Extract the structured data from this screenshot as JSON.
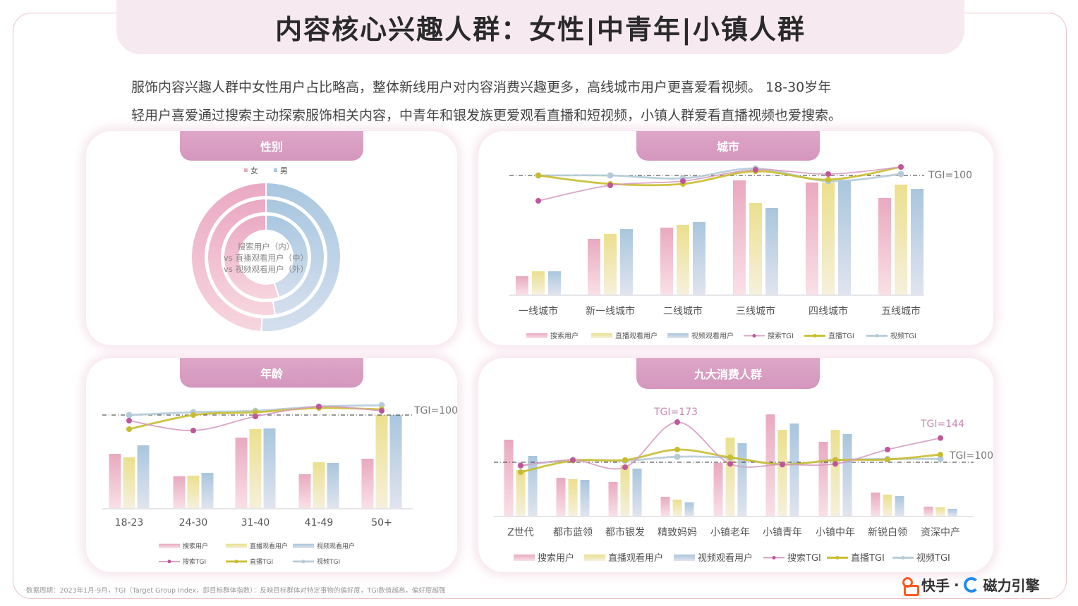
{
  "title": "内容核心兴趣人群：女性|中青年|小镇人群",
  "description": [
    "服饰内容兴趣人群中女性用户占比略高，整体新线用户对内容消费兴趣更多，高线城市用户更喜爱看视频。 18-30岁年",
    "轻用户喜爱通过搜索主动探索服饰相关内容，中青年和银发族更爱观看直播和短视频，小镇人群爱看直播视频也爱搜索。"
  ],
  "footer_note": "数据周期：2023年1月-9月，TGI（Target Group Index，即目标群体指数）：反映目标群体对特定事物的偏好度，TGI数值越高，偏好度越强",
  "logo": {
    "kuaishou": "快手",
    "separator": "·",
    "cili": "磁力引擎"
  },
  "colors": {
    "female": "#eaa9c3",
    "male": "#a9c7e0",
    "search": "#e9a9c0",
    "live": "#ebe08e",
    "video": "#a9c6dd",
    "search_tgi": "#c0569a",
    "live_tgi": "#c8bd2c",
    "video_tgi": "#a8c4d4",
    "tab": "#d99cc2"
  },
  "chart_data": [
    {
      "type": "pie",
      "title": "性别",
      "legend": [
        "女",
        "男"
      ],
      "center_label": [
        "搜索用户（内）",
        "vs 直播观看用户（中）",
        "vs 视频观看用户（外）"
      ],
      "rings": [
        {
          "name": "搜索用户",
          "position": "内",
          "values": [
            55,
            45
          ]
        },
        {
          "name": "直播观看用户",
          "position": "中",
          "values": [
            52.5,
            47.5
          ]
        },
        {
          "name": "视频观看用户",
          "position": "外",
          "values": [
            49,
            51
          ]
        }
      ]
    },
    {
      "type": "bar",
      "title": "城市",
      "categories": [
        "一线城市",
        "新一线城市",
        "二线城市",
        "三线城市",
        "四线城市",
        "五线城市"
      ],
      "series": [
        {
          "name": "搜索用户",
          "kind": "bar",
          "values": [
            26,
            79,
            95,
            162,
            159,
            137
          ]
        },
        {
          "name": "直播观看用户",
          "kind": "bar",
          "values": [
            33,
            86,
            99,
            130,
            159,
            156
          ]
        },
        {
          "name": "视频观看用户",
          "kind": "bar",
          "values": [
            33,
            93,
            103,
            123,
            163,
            150
          ]
        },
        {
          "name": "搜索TGI",
          "kind": "line",
          "values": [
            82,
            93,
            96,
            104,
            101,
            106
          ]
        },
        {
          "name": "直播TGI",
          "kind": "line",
          "values": [
            100,
            94,
            94,
            103,
            97,
            106
          ]
        },
        {
          "name": "视频TGI",
          "kind": "line",
          "values": [
            100,
            100,
            98,
            105,
            96,
            101
          ]
        }
      ],
      "reference_line": {
        "value": 100,
        "label": "TGI=100"
      },
      "annotations": []
    },
    {
      "type": "bar",
      "title": "年龄",
      "categories": [
        "18-23",
        "24-30",
        "31-40",
        "41-49",
        "50+"
      ],
      "series": [
        {
          "name": "搜索用户",
          "kind": "bar",
          "values": [
            77,
            45,
            100,
            48,
            70
          ]
        },
        {
          "name": "直播观看用户",
          "kind": "bar",
          "values": [
            72,
            46,
            112,
            65,
            132
          ]
        },
        {
          "name": "视频观看用户",
          "kind": "bar",
          "values": [
            89,
            50,
            113,
            64,
            132
          ]
        },
        {
          "name": "搜索TGI",
          "kind": "line",
          "values": [
            96,
            89,
            99,
            106,
            103
          ]
        },
        {
          "name": "直播TGI",
          "kind": "line",
          "values": [
            90,
            100,
            102,
            105,
            104
          ]
        },
        {
          "name": "视频TGI",
          "kind": "line",
          "values": [
            100,
            102,
            103,
            106,
            107
          ]
        }
      ],
      "reference_line": {
        "value": 100,
        "label": "TGI=100"
      },
      "annotations": []
    },
    {
      "type": "bar",
      "title": "九大消费人群",
      "categories": [
        "Z世代",
        "都市蓝领",
        "都市银发",
        "精致妈妈",
        "小镇老年",
        "小镇青年",
        "小镇中年",
        "新锐白领",
        "资深中产"
      ],
      "series": [
        {
          "name": "搜索用户",
          "kind": "bar",
          "values": [
            108,
            54,
            48,
            27,
            75,
            144,
            105,
            33,
            13
          ]
        },
        {
          "name": "直播观看用户",
          "kind": "bar",
          "values": [
            65,
            52,
            72,
            23,
            111,
            122,
            122,
            30,
            12
          ]
        },
        {
          "name": "视频观看用户",
          "kind": "bar",
          "values": [
            85,
            51,
            67,
            19,
            103,
            131,
            116,
            28,
            10
          ]
        },
        {
          "name": "搜索TGI",
          "kind": "line",
          "values": [
            94,
            104,
            91,
            173,
            97,
            96,
            97,
            123,
            144
          ]
        },
        {
          "name": "直播TGI",
          "kind": "line",
          "values": [
            82,
            103,
            104,
            123,
            109,
            96,
            104,
            105,
            114
          ]
        },
        {
          "name": "视频TGI",
          "kind": "line",
          "values": [
            94,
            104,
            103,
            110,
            108,
            96,
            104,
            106,
            106
          ]
        }
      ],
      "reference_line": {
        "value": 100,
        "label": "TGI=100"
      },
      "annotations": [
        {
          "category": "精致妈妈",
          "series": "搜索TGI",
          "label": "TGI=173"
        },
        {
          "category": "资深中产",
          "series": "搜索TGI",
          "label": "TGI=144"
        }
      ]
    }
  ]
}
